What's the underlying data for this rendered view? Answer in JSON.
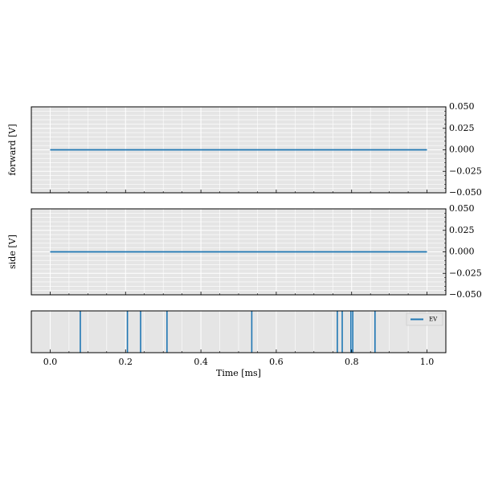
{
  "chart_data": [
    {
      "type": "line",
      "ylabel": "forward [V]",
      "xlim": [
        -0.05,
        1.05
      ],
      "ylim": [
        -0.05,
        0.05
      ],
      "yticks": [
        0.05,
        0.025,
        0.0,
        -0.025,
        -0.05
      ],
      "ytick_labels": [
        "0.050",
        "0.025",
        "0.000",
        "−0.025",
        "−0.050"
      ],
      "y_axis_side": "right",
      "grid": true,
      "series": [
        {
          "x": [
            0.0,
            1.0
          ],
          "y": [
            0.0,
            0.0
          ],
          "color": "#1f77b4"
        }
      ]
    },
    {
      "type": "line",
      "ylabel": "side [V]",
      "xlim": [
        -0.05,
        1.05
      ],
      "ylim": [
        -0.05,
        0.05
      ],
      "yticks": [
        0.05,
        0.025,
        0.0,
        -0.025,
        -0.05
      ],
      "ytick_labels": [
        "0.050",
        "0.025",
        "0.000",
        "−0.025",
        "−0.050"
      ],
      "y_axis_side": "right",
      "grid": true,
      "series": [
        {
          "x": [
            0.0,
            1.0
          ],
          "y": [
            0.0,
            0.0
          ],
          "color": "#1f77b4"
        }
      ]
    },
    {
      "type": "event",
      "xlabel": "Time [ms]",
      "xlim": [
        -0.05,
        1.05
      ],
      "xticks": [
        0.0,
        0.2,
        0.4,
        0.6,
        0.8,
        1.0
      ],
      "xtick_labels": [
        "0.0",
        "0.2",
        "0.4",
        "0.6",
        "0.8",
        "1.0"
      ],
      "grid": true,
      "legend_position": "top-right",
      "series": [
        {
          "name": "EV",
          "color": "#1f77b4",
          "events": [
            0.08,
            0.205,
            0.24,
            0.31,
            0.535,
            0.762,
            0.775,
            0.798,
            0.803,
            0.862
          ]
        }
      ]
    }
  ]
}
